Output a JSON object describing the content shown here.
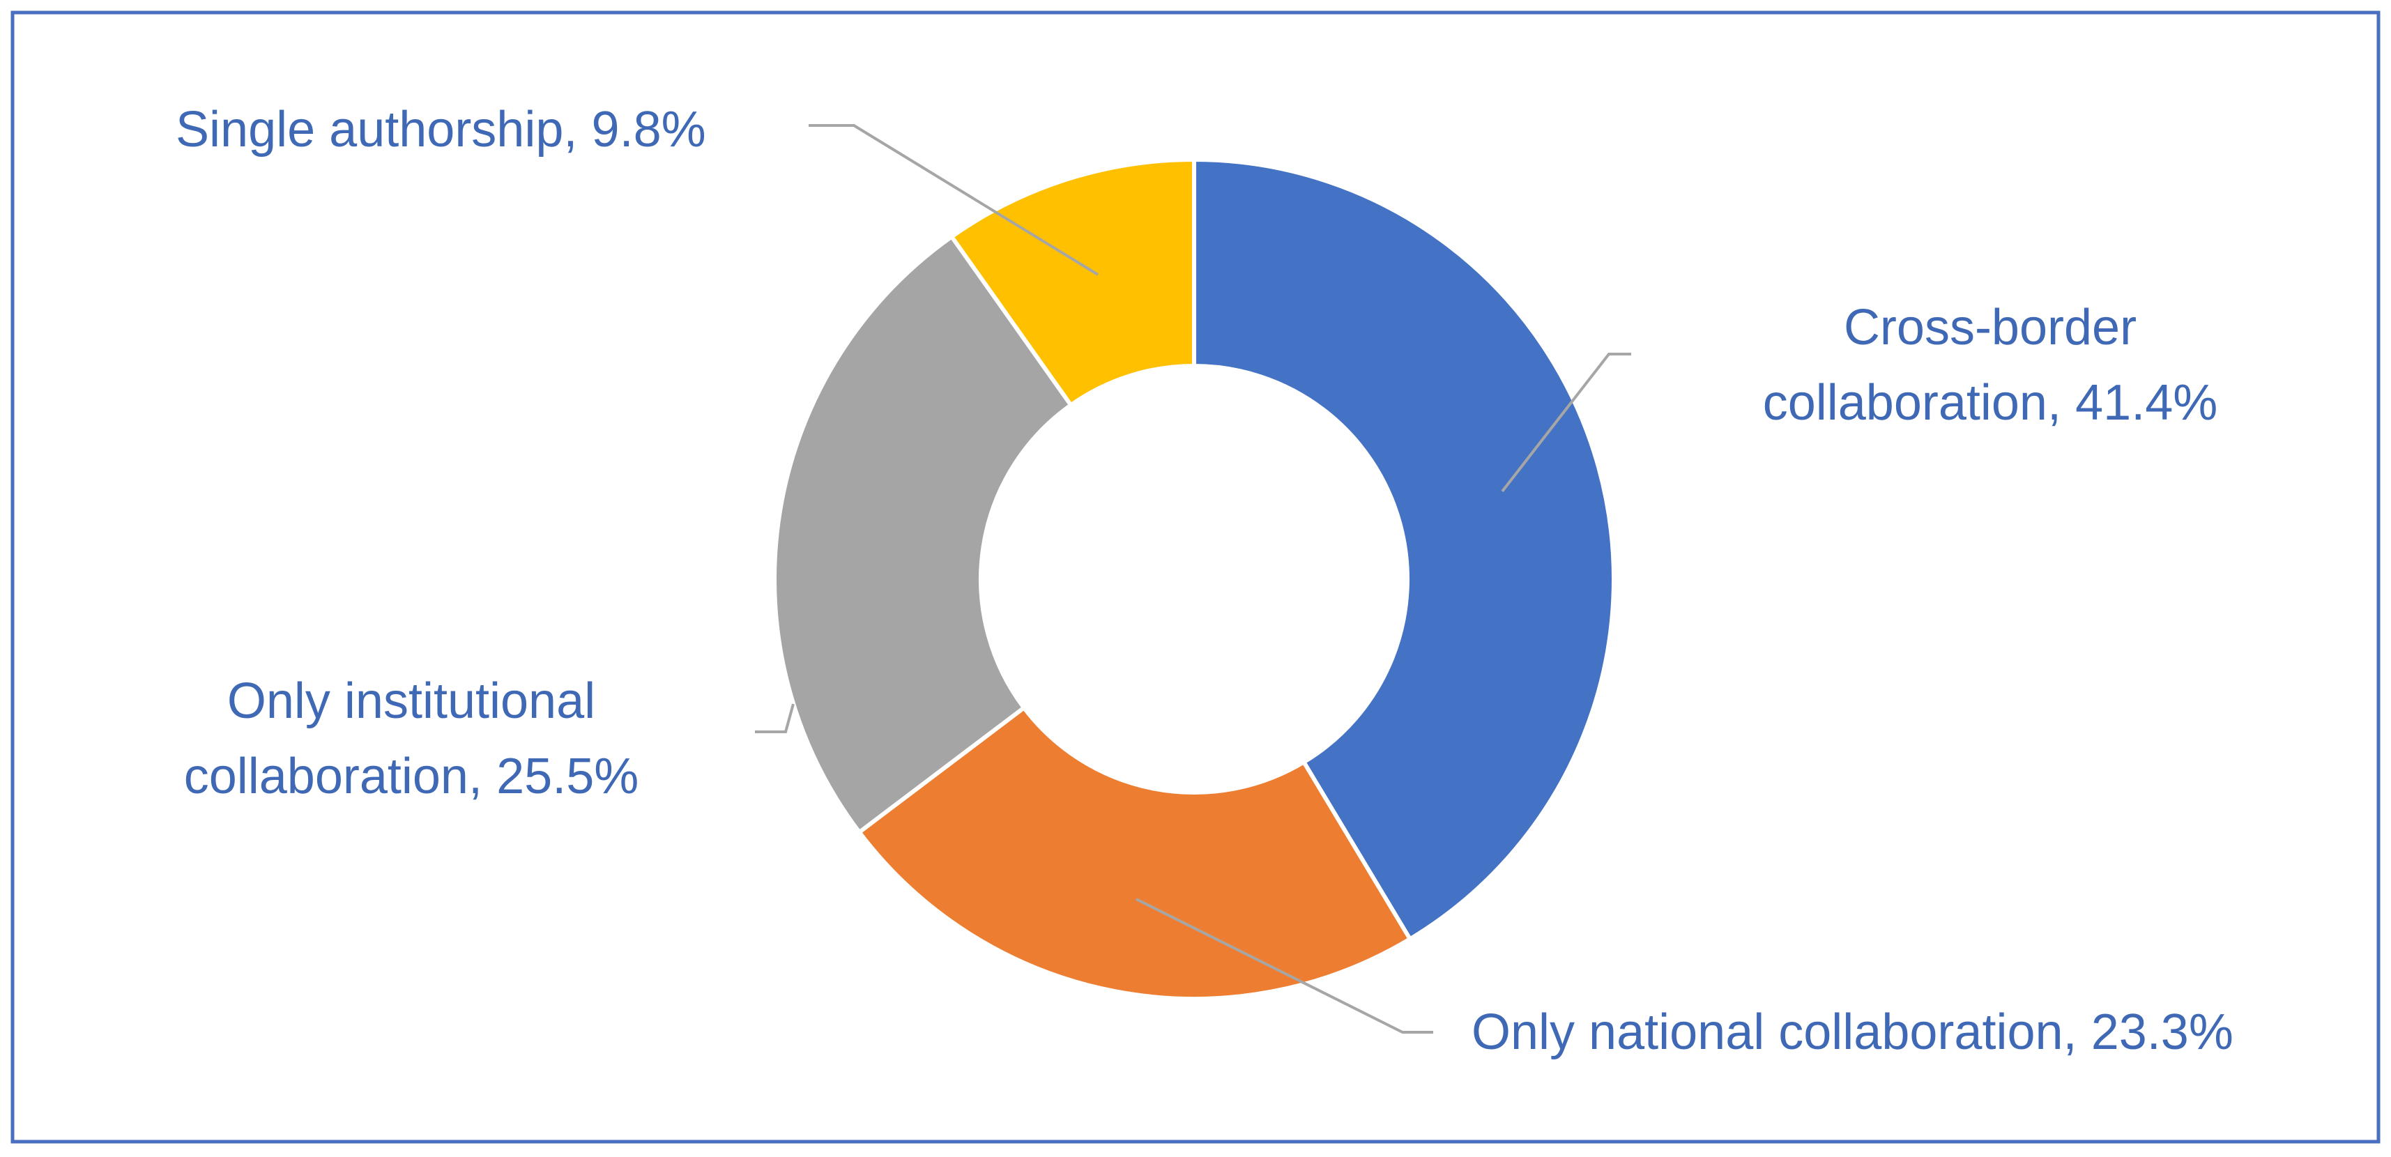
{
  "chart_data": {
    "type": "donut",
    "categories": [
      "Cross-border collaboration,",
      "Only national collaboration,",
      "Only institutional collaboration,",
      "Single authorship,"
    ],
    "values": [
      41.4,
      23.3,
      25.5,
      9.8
    ],
    "value_labels": [
      "41.4%",
      "23.3%",
      "25.5%",
      "9.8%"
    ],
    "colors": [
      "#4472c4",
      "#ed7d31",
      "#a5a5a5",
      "#ffc000"
    ]
  }
}
